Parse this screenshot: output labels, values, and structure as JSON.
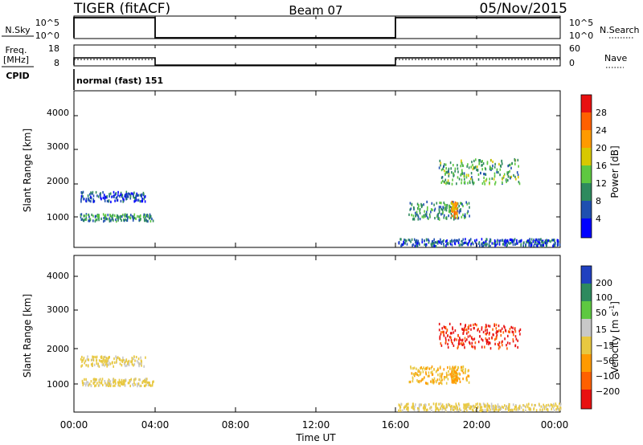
{
  "header": {
    "station": "TIGER (fitACF)",
    "beam": "Beam 07",
    "date": "05/Nov/2015"
  },
  "params": {
    "nsky_label": "N.Sky",
    "nsky_ticks": [
      "10^5",
      "10^0"
    ],
    "nsearch_label": "N.Search",
    "nsearch_ticks": [
      "10^5",
      "10^0"
    ],
    "freq_label_line1": "Freq.",
    "freq_label_line2": "[MHz]",
    "freq_ticks": [
      "18",
      "8"
    ],
    "nave_label": "Nave",
    "nave_ticks": [
      "60",
      "0"
    ],
    "cpid_label": "CPID",
    "cpid_text": "normal (fast) 151"
  },
  "x_axis": {
    "ticks": [
      "00:00",
      "04:00",
      "08:00",
      "12:00",
      "16:00",
      "20:00",
      "00:00"
    ],
    "label": "Time UT"
  },
  "panels": {
    "power": {
      "ylabel": "Slant Range [km]",
      "yticks": [
        "4000",
        "3000",
        "2000",
        "1000"
      ],
      "cbar_label": "Power [dB]",
      "cbar_ticks": [
        "28",
        "24",
        "20",
        "16",
        "12",
        "8",
        "4"
      ]
    },
    "velocity": {
      "ylabel": "Slant Range [km]",
      "yticks": [
        "4000",
        "3000",
        "2000",
        "1000"
      ],
      "cbar_label_main": "Velocity [m s",
      "cbar_label_sup": "-1",
      "cbar_label_end": "]",
      "cbar_ticks": [
        "200",
        "100",
        "50",
        "15",
        "−15",
        "−50",
        "−100",
        "−200"
      ]
    }
  },
  "chart_data": [
    {
      "type": "scatter",
      "title": "Power",
      "xlabel": "Time UT",
      "ylabel": "Slant Range [km]",
      "x_range_hours": [
        0,
        24
      ],
      "ylim": [
        180,
        4600
      ],
      "colorbar": {
        "label": "Power [dB]",
        "range": [
          0,
          32
        ],
        "colors": [
          "#0000ff",
          "#1f4fb0",
          "#2e8a5e",
          "#5ec840",
          "#d8c800",
          "#ff9a00",
          "#ff6000",
          "#e81010"
        ]
      },
      "clusters": [
        {
          "t": [
            0.3,
            3.9
          ],
          "r": [
            950,
            1150
          ],
          "value": 10
        },
        {
          "t": [
            0.3,
            3.5
          ],
          "r": [
            1500,
            1780
          ],
          "value": 6
        },
        {
          "t": [
            16.0,
            24.0
          ],
          "r": [
            250,
            450
          ],
          "value": 6
        },
        {
          "t": [
            16.5,
            19.5
          ],
          "r": [
            1000,
            1500
          ],
          "value": 10
        },
        {
          "t": [
            18.6,
            18.9
          ],
          "r": [
            1050,
            1500
          ],
          "value": 22
        },
        {
          "t": [
            18.0,
            22.0
          ],
          "r": [
            2000,
            2700
          ],
          "value": 12
        }
      ]
    },
    {
      "type": "scatter",
      "title": "Velocity",
      "xlabel": "Time UT",
      "ylabel": "Slant Range [km]",
      "x_range_hours": [
        0,
        24
      ],
      "ylim": [
        180,
        4600
      ],
      "colorbar": {
        "label": "Velocity [m s-1]",
        "range": [
          -250,
          250
        ],
        "colors": [
          "#2040c0",
          "#2e8a5e",
          "#5ec840",
          "#c8c8c8",
          "#e8c840",
          "#ff9a00",
          "#ff6000",
          "#e81010"
        ]
      },
      "clusters": [
        {
          "t": [
            0.3,
            3.9
          ],
          "r": [
            950,
            1150
          ],
          "value": -15
        },
        {
          "t": [
            0.3,
            3.5
          ],
          "r": [
            1500,
            1780
          ],
          "value": -15
        },
        {
          "t": [
            16.0,
            24.0
          ],
          "r": [
            250,
            450
          ],
          "value": -15
        },
        {
          "t": [
            16.5,
            19.5
          ],
          "r": [
            1000,
            1500
          ],
          "value": -60
        },
        {
          "t": [
            18.6,
            18.9
          ],
          "r": [
            1050,
            1500
          ],
          "value": -80
        },
        {
          "t": [
            18.0,
            22.0
          ],
          "r": [
            2000,
            2700
          ],
          "value": -200
        }
      ]
    }
  ]
}
